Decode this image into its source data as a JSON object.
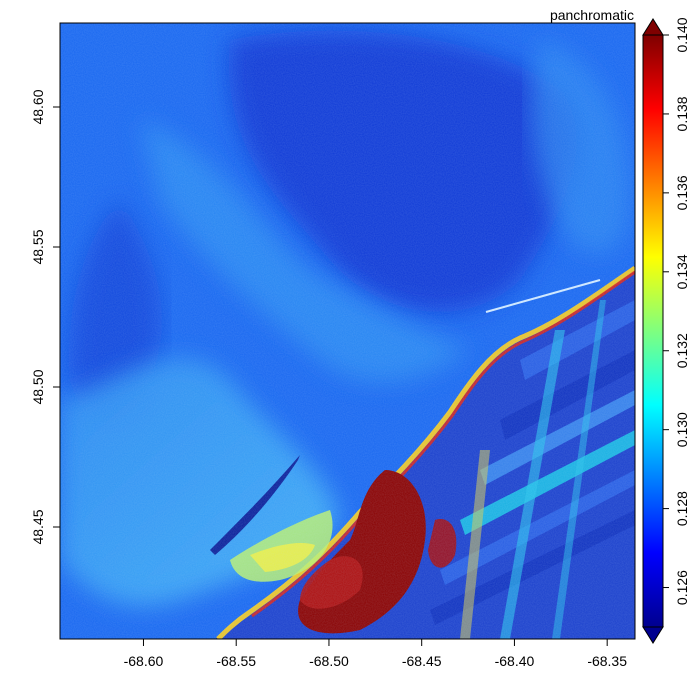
{
  "chart_data": {
    "type": "heatmap",
    "title": "",
    "xlabel": "",
    "ylabel": "",
    "xlim": [
      -68.645,
      -68.335
    ],
    "ylim": [
      48.41,
      48.63
    ],
    "x_ticks": [
      {
        "value": -68.6,
        "label": "-68.60"
      },
      {
        "value": -68.55,
        "label": "-68.55"
      },
      {
        "value": -68.5,
        "label": "-68.50"
      },
      {
        "value": -68.45,
        "label": "-68.45"
      },
      {
        "value": -68.4,
        "label": "-68.40"
      },
      {
        "value": -68.35,
        "label": "-68.35"
      }
    ],
    "y_ticks": [
      {
        "value": 48.45,
        "label": "48.45"
      },
      {
        "value": 48.5,
        "label": "48.50"
      },
      {
        "value": 48.55,
        "label": "48.55"
      },
      {
        "value": 48.6,
        "label": "48.60"
      }
    ],
    "colorbar": {
      "title": "panchromatic",
      "range": [
        0.125,
        0.14
      ],
      "extend": "both",
      "palette": [
        "#00008f",
        "#0000ff",
        "#007fff",
        "#00ffff",
        "#7fff7f",
        "#ffff00",
        "#ff7f00",
        "#ff0000",
        "#7f0000"
      ],
      "ticks": [
        {
          "value": 0.126,
          "label": "0.126"
        },
        {
          "value": 0.128,
          "label": "0.128"
        },
        {
          "value": 0.13,
          "label": "0.130"
        },
        {
          "value": 0.132,
          "label": "0.132"
        },
        {
          "value": 0.134,
          "label": "0.134"
        },
        {
          "value": 0.136,
          "label": "0.136"
        },
        {
          "value": 0.138,
          "label": "0.138"
        },
        {
          "value": 0.14,
          "label": "0.140"
        }
      ]
    },
    "grid": false,
    "legend": "right",
    "description_colors": {
      "deep_water": "#0a3ad8",
      "open_water": "#1466f0",
      "shallow_water": "#3aa8f5",
      "sandbank": "#b8f070",
      "land_low": "#1a3fcc",
      "urban": "#8a0000"
    }
  }
}
